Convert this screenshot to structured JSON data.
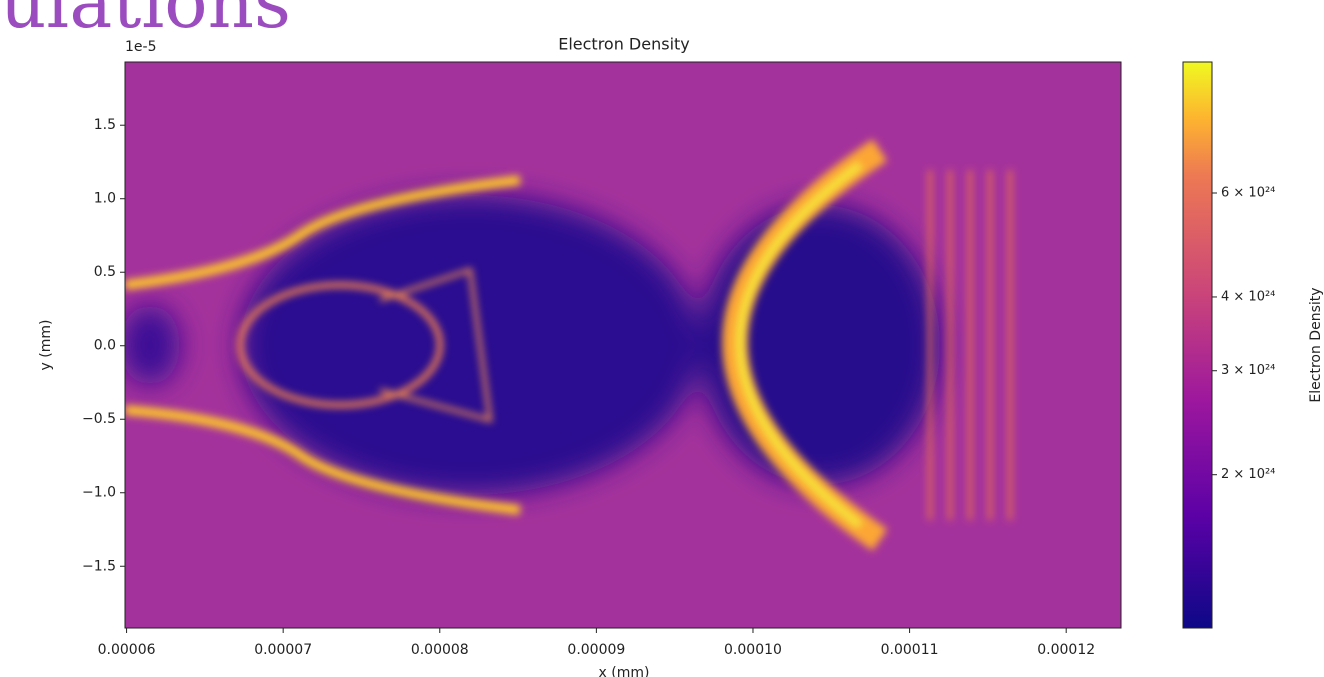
{
  "header": {
    "title": "ulations"
  },
  "chart_data": {
    "type": "heatmap",
    "title": "Electron Density",
    "x_label": "x (mm)",
    "y_label": "y (mm)",
    "y_offset_label": "1e-5",
    "xlim": [
      5.99e-05,
      0.0001235
    ],
    "xticks": [
      {
        "value": 6e-05,
        "label": "0.00006"
      },
      {
        "value": 7e-05,
        "label": "0.00007"
      },
      {
        "value": 8e-05,
        "label": "0.00008"
      },
      {
        "value": 9e-05,
        "label": "0.00009"
      },
      {
        "value": 0.0001,
        "label": "0.00010"
      },
      {
        "value": 0.00011,
        "label": "0.00011"
      },
      {
        "value": 0.00012,
        "label": "0.00012"
      }
    ],
    "ylim": [
      -1.92,
      1.93
    ],
    "yticks": [
      1.5,
      {
        "value": 1.0,
        "label": "1.0"
      },
      0.5,
      {
        "value": 0.0,
        "label": "0.0"
      },
      {
        "value": -0.5,
        "label": "−0.5"
      },
      {
        "value": -1.0,
        "label": "−1.0"
      },
      {
        "value": -1.5,
        "label": "−1.5"
      }
    ],
    "colormap": "plasma",
    "colorbar": {
      "label": "Electron Density",
      "log": true,
      "lim": [
        1.1e+24,
        1e+25
      ],
      "ticks": [
        {
          "value": 6e+24,
          "label": "6 × 10²⁴"
        },
        {
          "value": 4e+24,
          "label": "4 × 10²⁴"
        },
        {
          "value": 3e+24,
          "label": "3 × 10²⁴"
        },
        {
          "value": 2e+24,
          "label": "2 × 10²⁴"
        }
      ]
    }
  }
}
